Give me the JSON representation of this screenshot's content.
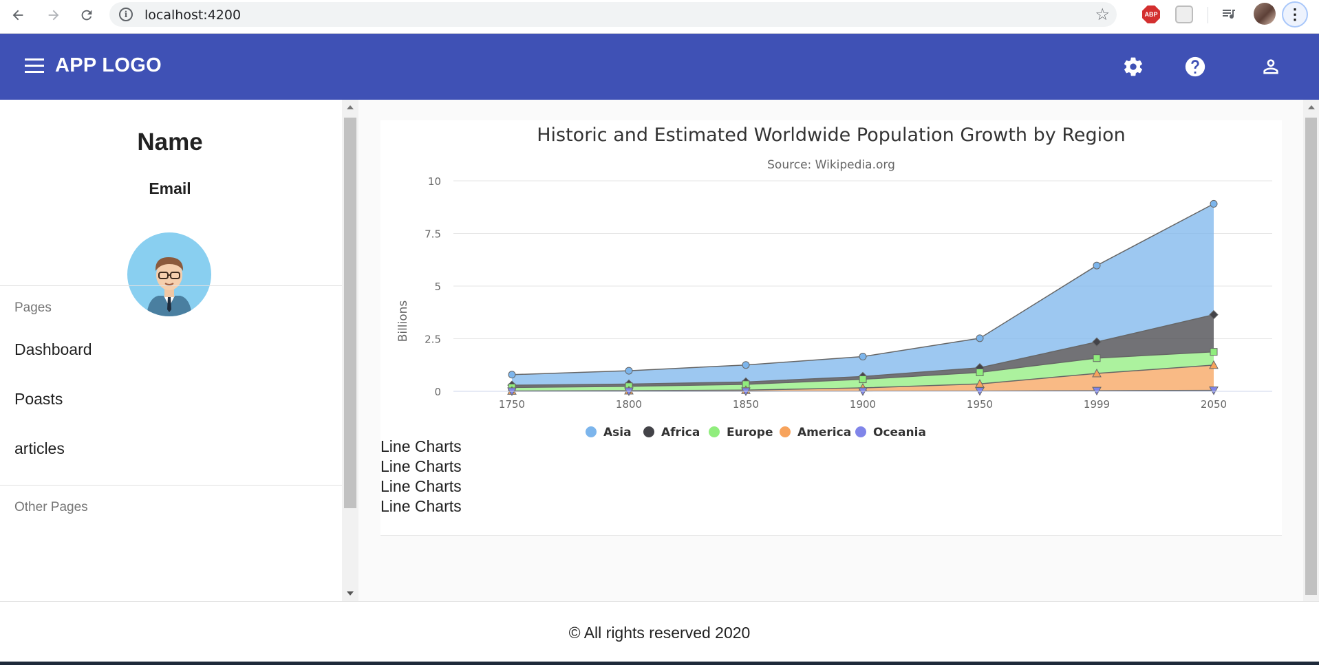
{
  "browser": {
    "url": "localhost:4200",
    "icons": [
      "back-icon",
      "forward-icon",
      "reload-icon",
      "info-icon",
      "bookmark-star-icon",
      "adblock-icon",
      "pocket-icon",
      "media-icon",
      "profile-avatar",
      "menu-icon"
    ],
    "adblock_label": "ABP"
  },
  "toolbar": {
    "logo": "APP LOGO",
    "icons": [
      "menu-icon",
      "settings-icon",
      "help-icon",
      "account-icon"
    ]
  },
  "sidebar": {
    "name": "Name",
    "email": "Email",
    "sections": [
      {
        "title": "Pages",
        "items": [
          "Dashboard",
          "Poasts",
          "articles"
        ]
      },
      {
        "title": "Other Pages",
        "items": []
      }
    ]
  },
  "main": {
    "line_texts": [
      "Line Charts",
      "Line Charts",
      "Line Charts",
      "Line Charts"
    ]
  },
  "footer": {
    "text": "© All rights reserved 2020"
  },
  "chart_data": {
    "type": "area",
    "stacked": true,
    "title": "Historic and Estimated Worldwide Population Growth by Region",
    "subtitle": "Source: Wikipedia.org",
    "ylabel": "Billions",
    "xlabel": "",
    "categories": [
      "1750",
      "1800",
      "1850",
      "1900",
      "1950",
      "1999",
      "2050"
    ],
    "yticks": [
      "0",
      "2.5",
      "5",
      "7.5",
      "10"
    ],
    "ylim": [
      0,
      10
    ],
    "grid": true,
    "legend_position": "bottom",
    "series": [
      {
        "name": "Asia",
        "color": "#7cb5ec",
        "marker": "circle",
        "values": [
          0.502,
          0.635,
          0.809,
          0.947,
          1.402,
          3.634,
          5.268
        ]
      },
      {
        "name": "Africa",
        "color": "#434348",
        "marker": "diamond",
        "values": [
          0.106,
          0.107,
          0.111,
          0.133,
          0.221,
          0.767,
          1.766
        ]
      },
      {
        "name": "Europe",
        "color": "#90ed7d",
        "marker": "square",
        "values": [
          0.163,
          0.203,
          0.276,
          0.408,
          0.547,
          0.729,
          0.628
        ]
      },
      {
        "name": "America",
        "color": "#f7a35c",
        "marker": "triangle",
        "values": [
          0.018,
          0.031,
          0.054,
          0.156,
          0.339,
          0.818,
          1.201
        ]
      },
      {
        "name": "Oceania",
        "color": "#8085e9",
        "marker": "triangle-down",
        "values": [
          0.002,
          0.002,
          0.002,
          0.006,
          0.013,
          0.03,
          0.046
        ]
      }
    ]
  }
}
